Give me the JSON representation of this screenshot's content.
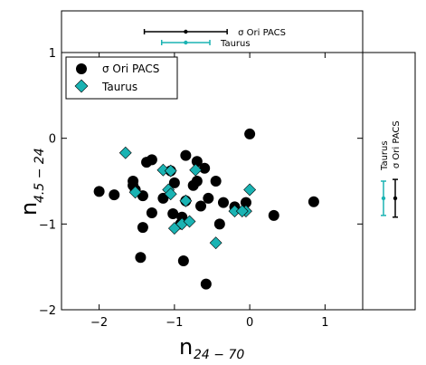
{
  "chart_data": {
    "type": "scatter",
    "xlabel": "n",
    "xlabel_sub": "24 − 70",
    "ylabel": "n",
    "ylabel_sub": "4.5 − 24",
    "xlim": [
      -2.5,
      1.5
    ],
    "ylim": [
      -2,
      1
    ],
    "xticks": [
      "−2",
      "−1",
      "0",
      "1"
    ],
    "yticks": [
      "−2",
      "−1",
      "0",
      "1"
    ],
    "legend_position": "top-left",
    "colors": {
      "sigma_ori": "#000000",
      "taurus": "#1ab3b3"
    },
    "series": [
      {
        "name": "σ Ori PACS",
        "marker": "circle",
        "points": [
          [
            -2.0,
            -0.62
          ],
          [
            -1.8,
            -0.66
          ],
          [
            -1.55,
            -0.5
          ],
          [
            -1.55,
            -0.55
          ],
          [
            -1.52,
            -0.6
          ],
          [
            -1.42,
            -0.67
          ],
          [
            -1.37,
            -0.28
          ],
          [
            -1.3,
            -0.25
          ],
          [
            -1.3,
            -0.87
          ],
          [
            -1.42,
            -1.04
          ],
          [
            -1.45,
            -1.39
          ],
          [
            -1.15,
            -0.7
          ],
          [
            -1.05,
            -0.38
          ],
          [
            -1.0,
            -0.52
          ],
          [
            -1.02,
            -0.88
          ],
          [
            -0.9,
            -0.92
          ],
          [
            -0.92,
            -1.0
          ],
          [
            -0.85,
            -0.2
          ],
          [
            -0.85,
            -0.73
          ],
          [
            -0.88,
            -1.43
          ],
          [
            -0.75,
            -0.55
          ],
          [
            -0.7,
            -0.27
          ],
          [
            -0.7,
            -0.5
          ],
          [
            -0.65,
            -0.79
          ],
          [
            -0.6,
            -0.35
          ],
          [
            -0.55,
            -0.7
          ],
          [
            -0.58,
            -1.7
          ],
          [
            -0.45,
            -0.5
          ],
          [
            -0.4,
            -1.0
          ],
          [
            -0.35,
            -0.75
          ],
          [
            -0.2,
            -0.8
          ],
          [
            -0.05,
            -0.75
          ],
          [
            0.0,
            0.05
          ],
          [
            0.32,
            -0.9
          ],
          [
            0.85,
            -0.74
          ]
        ]
      },
      {
        "name": "Taurus",
        "marker": "diamond",
        "points": [
          [
            -1.65,
            -0.17
          ],
          [
            -1.52,
            -0.63
          ],
          [
            -1.15,
            -0.37
          ],
          [
            -1.05,
            -0.38
          ],
          [
            -1.08,
            -0.6
          ],
          [
            -1.05,
            -0.65
          ],
          [
            -1.0,
            -1.05
          ],
          [
            -0.9,
            -1.0
          ],
          [
            -0.85,
            -0.73
          ],
          [
            -0.8,
            -0.97
          ],
          [
            -0.72,
            -0.37
          ],
          [
            -0.45,
            -1.22
          ],
          [
            -0.2,
            -0.85
          ],
          [
            -0.05,
            -0.85
          ],
          [
            0.0,
            -0.6
          ],
          [
            -0.1,
            -0.85
          ]
        ]
      }
    ],
    "error_panels": {
      "top": [
        {
          "label": "σ Ori PACS",
          "x": -0.85,
          "xerr": 0.55,
          "color": "#000000"
        },
        {
          "label": "Taurus",
          "x": -0.85,
          "xerr": 0.32,
          "color": "#1ab3b3"
        }
      ],
      "right": [
        {
          "label": "σ Ori PACS",
          "y": -0.7,
          "yerr": 0.22,
          "color": "#000000"
        },
        {
          "label": "Taurus",
          "y": -0.7,
          "yerr": 0.2,
          "color": "#1ab3b3"
        }
      ]
    }
  }
}
